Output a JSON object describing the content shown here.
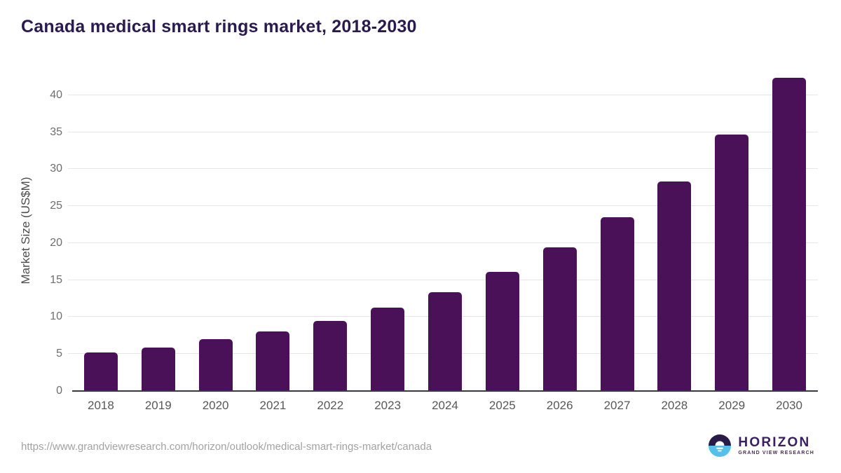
{
  "chart": {
    "title": "Canada medical smart rings market, 2018-2030",
    "ylabel": "Market Size (US$M)"
  },
  "chart_data": {
    "type": "bar",
    "categories": [
      "2018",
      "2019",
      "2020",
      "2021",
      "2022",
      "2023",
      "2024",
      "2025",
      "2026",
      "2027",
      "2028",
      "2029",
      "2030"
    ],
    "values": [
      5.2,
      5.9,
      7.0,
      8.1,
      9.5,
      11.3,
      13.4,
      16.1,
      19.4,
      23.5,
      28.3,
      34.7,
      42.4
    ],
    "title": "Canada medical smart rings market, 2018-2030",
    "xlabel": "",
    "ylabel": "Market Size (US$M)",
    "ylim": [
      0,
      43.4
    ],
    "yticks": [
      0,
      5,
      10,
      15,
      20,
      25,
      30,
      35,
      40
    ],
    "grid": true,
    "legend": "none",
    "bar_color": "#4a1158"
  },
  "colors": {
    "title": "#2a1a4f",
    "bar": "#4a1158",
    "gridline": "#e6e6e6",
    "axis_line": "#3a3740",
    "tick_text": "#6e6e6e",
    "logo_purple": "#2a1a47",
    "logo_blue": "#55c0e9"
  },
  "footer": {
    "url": "https://www.grandviewresearch.com/horizon/outlook/medical-smart-rings-market/canada",
    "brand_name": "HORIZON",
    "brand_subtitle": "GRAND VIEW RESEARCH"
  }
}
